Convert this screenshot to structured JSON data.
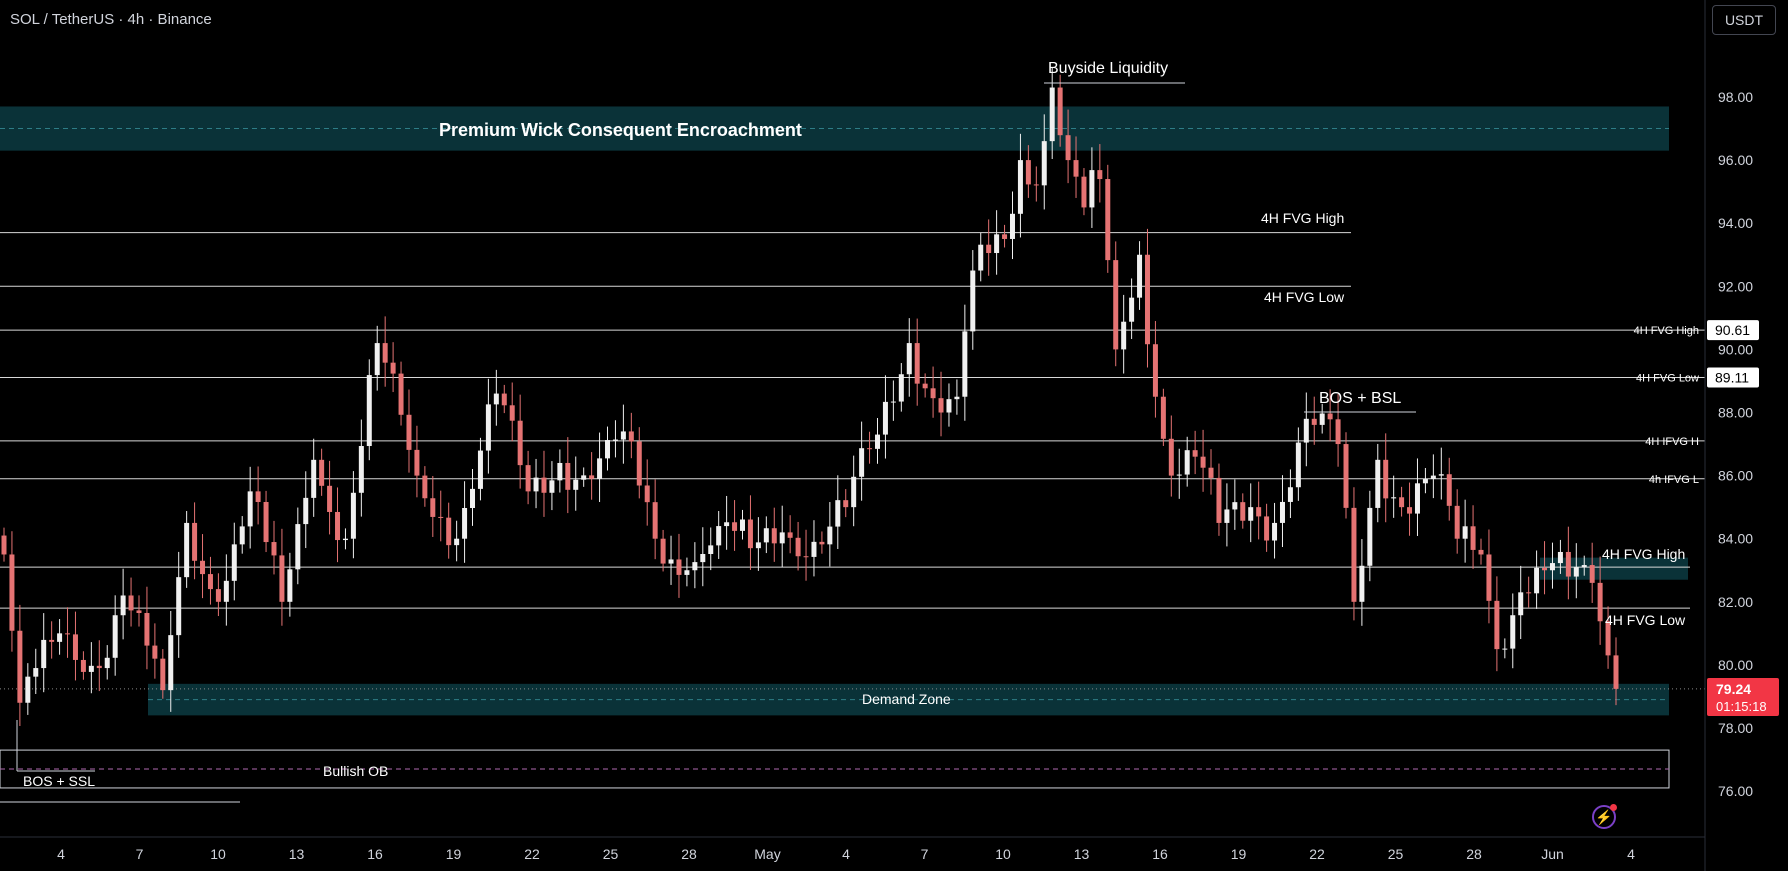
{
  "header": {
    "symbol_line": "SOL / TetherUS · 4h · Binance"
  },
  "currency_button": {
    "label": "USDT"
  },
  "price_scale": {
    "ticks": [
      "98.00",
      "96.00",
      "94.00",
      "92.00",
      "90.00",
      "88.00",
      "86.00",
      "84.00",
      "82.00",
      "80.00",
      "78.00",
      "76.00"
    ],
    "tick_values": [
      98,
      96,
      94,
      92,
      90,
      88,
      86,
      84,
      82,
      80,
      78,
      76
    ]
  },
  "time_scale": {
    "labels": [
      "4",
      "7",
      "10",
      "13",
      "16",
      "19",
      "22",
      "25",
      "28",
      "May",
      "4",
      "7",
      "10",
      "13",
      "16",
      "19",
      "22",
      "25",
      "28",
      "Jun",
      "4"
    ]
  },
  "last_price": {
    "value": "79.24",
    "countdown": "01:15:18",
    "color": "#f23645"
  },
  "level_tags": [
    {
      "value": "90.61",
      "label": "4H FVG High"
    },
    {
      "value": "89.11",
      "label": "4H FVG Low"
    },
    {
      "value": "",
      "label": "4H IFVG H"
    },
    {
      "value": "",
      "label": "4h IFVG L"
    }
  ],
  "annotations": {
    "buyside_liquidity": "Buyside Liquidity",
    "premium_wick": "Premium Wick Consequent Encroachment",
    "fvg_high_1": "4H FVG High",
    "fvg_low_1": "4H FVG Low",
    "bos_bsl": "BOS + BSL",
    "fvg_high_2": "4H FVG High",
    "fvg_low_2": "4H FVG Low",
    "demand_zone": "Demand Zone",
    "bullish_ob": "Bullish OB",
    "bos_ssl": "BOS + SSL"
  },
  "colors": {
    "up": "#f0f0f0",
    "down": "#e57373",
    "zone": "#0a3238",
    "zone_mid": "#2e7d86",
    "grid_text": "#d1d4dc"
  },
  "chart_data": {
    "type": "candlestick",
    "title": "SOL / TetherUS · 4h · Binance",
    "ylim": [
      75,
      100
    ],
    "x_labels": [
      "4",
      "7",
      "10",
      "13",
      "16",
      "19",
      "22",
      "25",
      "28",
      "May",
      "4",
      "7",
      "10",
      "13",
      "16",
      "19",
      "22",
      "25",
      "28",
      "Jun",
      "4"
    ],
    "horizontal_levels": [
      {
        "name": "4H FVG High",
        "value": 93.7
      },
      {
        "name": "4H FVG Low",
        "value": 92.0
      },
      {
        "name": "4H FVG High",
        "value": 90.61
      },
      {
        "name": "4H FVG Low",
        "value": 89.11
      },
      {
        "name": "4H IFVG H",
        "value": 87.1
      },
      {
        "name": "4h IFVG L",
        "value": 85.9
      },
      {
        "name": "4H FVG High",
        "value": 83.1
      },
      {
        "name": "4H FVG Low",
        "value": 81.8
      }
    ],
    "zones": [
      {
        "name": "Premium Wick Consequent Encroachment",
        "low": 96.3,
        "high": 97.7,
        "mid": 97.0
      },
      {
        "name": "4H FVG High",
        "low": 82.7,
        "high": 83.4
      },
      {
        "name": "Demand Zone",
        "low": 78.4,
        "high": 79.4,
        "mid": 78.9
      },
      {
        "name": "Bullish OB",
        "low": 76.1,
        "high": 77.3,
        "mid": 76.7
      }
    ],
    "key_points": [
      {
        "name": "Buyside Liquidity",
        "value": 98.3
      },
      {
        "name": "BOS + BSL",
        "value": 88.0
      },
      {
        "name": "BOS + SSL",
        "value": 76.6
      }
    ],
    "last_price": 79.24,
    "anchors": [
      [
        0,
        83.5
      ],
      [
        2,
        78.8
      ],
      [
        7,
        81.0
      ],
      [
        12,
        79.9
      ],
      [
        15,
        82.2
      ],
      [
        20,
        79.2
      ],
      [
        23,
        84.5
      ],
      [
        27,
        82.0
      ],
      [
        31,
        85.5
      ],
      [
        35,
        82.0
      ],
      [
        39,
        86.5
      ],
      [
        43,
        84.0
      ],
      [
        47,
        90.2
      ],
      [
        52,
        86.0
      ],
      [
        57,
        84.0
      ],
      [
        62,
        88.6
      ],
      [
        66,
        85.5
      ],
      [
        70,
        86.4
      ],
      [
        74,
        85.9
      ],
      [
        78,
        87.4
      ],
      [
        82,
        84.0
      ],
      [
        86,
        83.0
      ],
      [
        90,
        84.4
      ],
      [
        94,
        83.7
      ],
      [
        98,
        84.2
      ],
      [
        102,
        83.9
      ],
      [
        106,
        85.0
      ],
      [
        110,
        87.3
      ],
      [
        114,
        90.2
      ],
      [
        118,
        88.0
      ],
      [
        120,
        88.5
      ],
      [
        122,
        92.5
      ],
      [
        126,
        93.5
      ],
      [
        128,
        96.0
      ],
      [
        130,
        95.2
      ],
      [
        132,
        98.3
      ],
      [
        134,
        96.0
      ],
      [
        136,
        94.5
      ],
      [
        138,
        95.4
      ],
      [
        140,
        90.0
      ],
      [
        143,
        93.0
      ],
      [
        145,
        88.5
      ],
      [
        147,
        86.0
      ],
      [
        150,
        86.6
      ],
      [
        153,
        84.5
      ],
      [
        157,
        85.0
      ],
      [
        160,
        84.5
      ],
      [
        164,
        87.8
      ],
      [
        168,
        87.0
      ],
      [
        170,
        82.0
      ],
      [
        173,
        86.5
      ],
      [
        176,
        85.0
      ],
      [
        180,
        86.0
      ],
      [
        183,
        84.0
      ],
      [
        186,
        83.5
      ],
      [
        188,
        80.5
      ],
      [
        191,
        82.3
      ],
      [
        194,
        83.0
      ],
      [
        197,
        82.8
      ],
      [
        200,
        82.6
      ],
      [
        203,
        79.24
      ]
    ]
  }
}
